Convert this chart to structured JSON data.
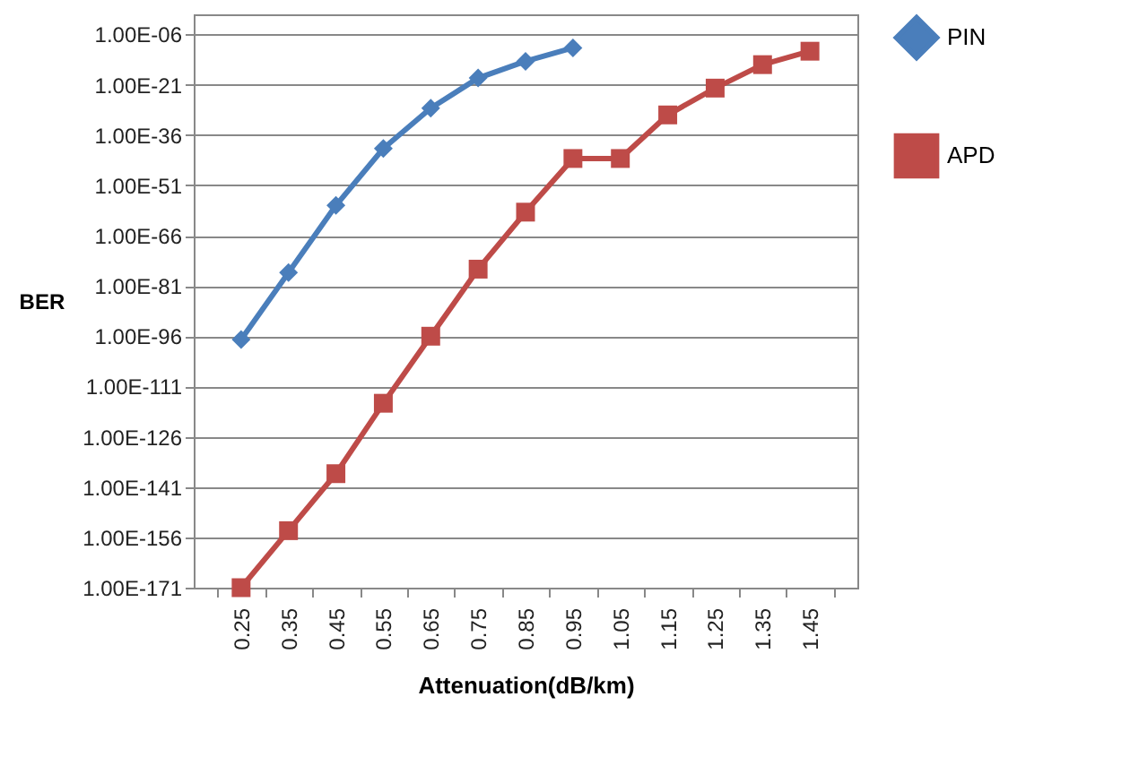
{
  "chart_data": {
    "type": "line",
    "xlabel": "Attenuation(dB/km)",
    "ylabel": "BER",
    "categories": [
      "0.25",
      "0.35",
      "0.45",
      "0.55",
      "0.65",
      "0.75",
      "0.85",
      "0.95",
      "1.05",
      "1.15",
      "1.25",
      "1.35",
      "1.45"
    ],
    "series": [
      {
        "name": "PIN",
        "color": "#4a7ebb",
        "marker": "diamond",
        "values": [
          1e-97,
          1e-77,
          1e-57,
          1e-40,
          1e-28,
          1e-19,
          1e-14,
          1e-10,
          null,
          null,
          null,
          null,
          null
        ]
      },
      {
        "name": "APD",
        "color": "#be4b48",
        "marker": "square",
        "values": [
          1e-171,
          1e-154,
          1e-137,
          1e-116,
          1e-96,
          1e-76,
          1e-59,
          1e-43,
          1e-43,
          1e-30,
          1e-22,
          1e-15,
          1e-11
        ]
      }
    ],
    "log": "y",
    "ylim": [
      1e-171,
      1
    ],
    "yticks": [
      {
        "value": 1e-171,
        "label": "1.00E-171"
      },
      {
        "value": 1e-156,
        "label": "1.00E-156"
      },
      {
        "value": 1e-141,
        "label": "1.00E-141"
      },
      {
        "value": 1e-126,
        "label": "1.00E-126"
      },
      {
        "value": 1e-111,
        "label": "1.00E-111"
      },
      {
        "value": 1e-96,
        "label": "1.00E-96"
      },
      {
        "value": 1e-81,
        "label": "1.00E-81"
      },
      {
        "value": 1e-66,
        "label": "1.00E-66"
      },
      {
        "value": 1e-51,
        "label": "1.00E-51"
      },
      {
        "value": 1e-36,
        "label": "1.00E-36"
      },
      {
        "value": 1e-21,
        "label": "1.00E-21"
      },
      {
        "value": 1e-06,
        "label": "1.00E-06"
      }
    ],
    "grid": "y",
    "legend": "right",
    "line_style": "solid"
  }
}
